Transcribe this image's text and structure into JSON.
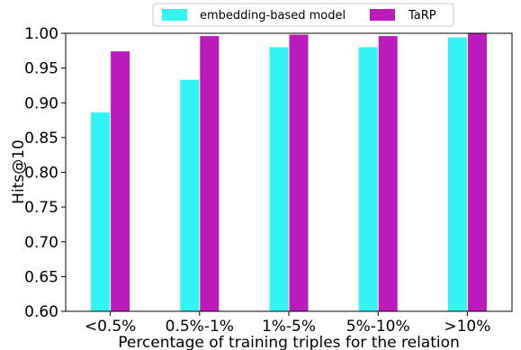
{
  "chart_data": {
    "type": "bar",
    "categories": [
      "<0.5%",
      "0.5%-1%",
      "1%-5%",
      "5%-10%",
      ">10%"
    ],
    "series": [
      {
        "name": "embedding-based model",
        "color": "#33f3f3",
        "values": [
          0.886,
          0.933,
          0.98,
          0.98,
          0.994
        ]
      },
      {
        "name": "TaRP",
        "color": "#bb1bbb",
        "values": [
          0.974,
          0.996,
          0.998,
          0.996,
          1.0
        ]
      }
    ],
    "xlabel": "Percentage of training triples for the relation",
    "ylabel": "Hits@10",
    "ylim": [
      0.6,
      1.0
    ],
    "yticks": [
      "0.60",
      "0.65",
      "0.70",
      "0.75",
      "0.80",
      "0.85",
      "0.90",
      "0.95",
      "1.00"
    ],
    "legend_position": "top-center",
    "grid": false
  }
}
